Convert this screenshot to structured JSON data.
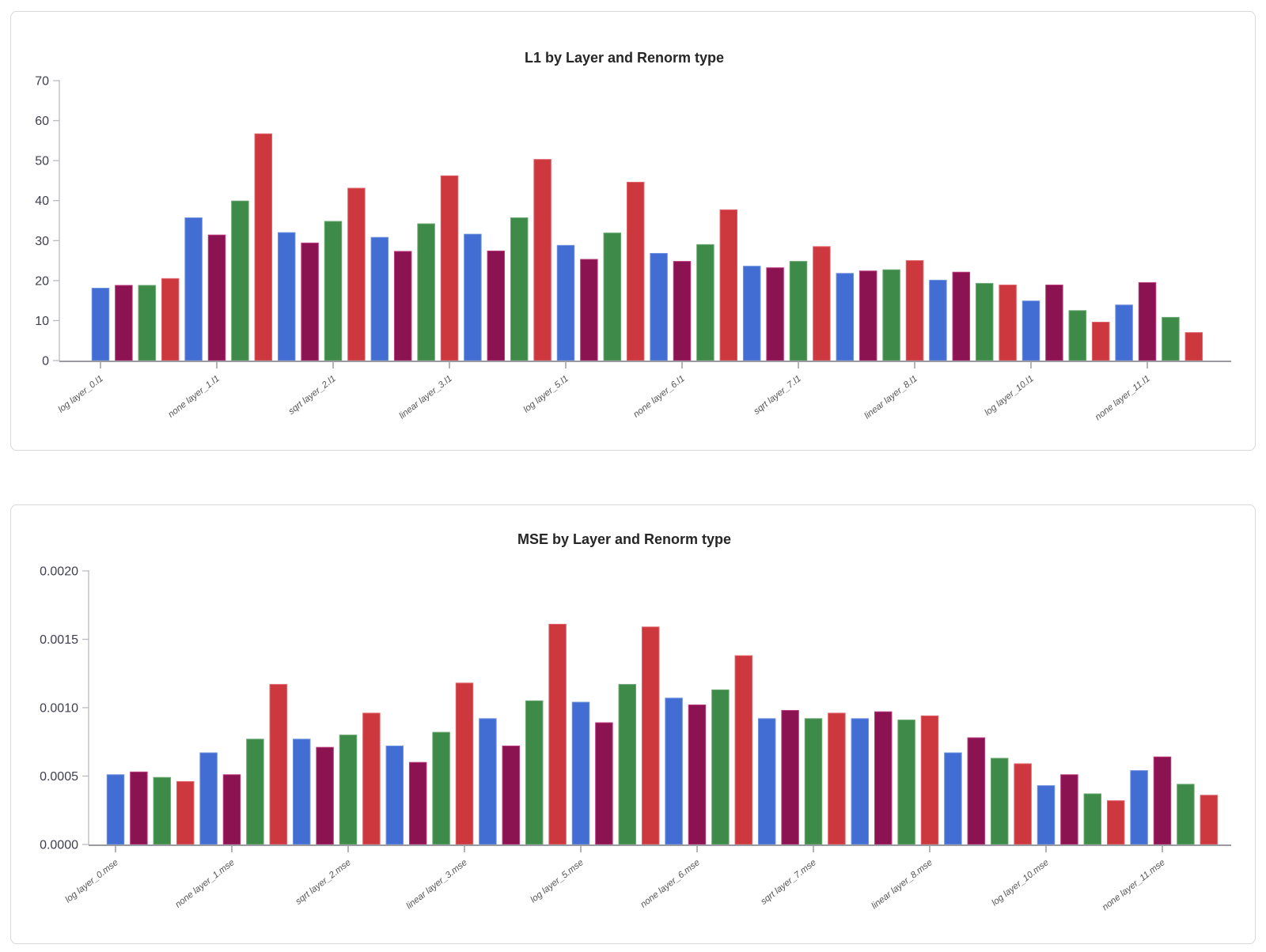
{
  "chart_data": [
    {
      "type": "bar",
      "title": "L1 by Layer and Renorm type",
      "xlabel": "",
      "ylabel": "",
      "ylim": [
        0,
        70
      ],
      "ytick_labels": [
        "0",
        "10",
        "20",
        "30",
        "40",
        "50",
        "60",
        "70"
      ],
      "grid": false,
      "legend": false,
      "groups": 12,
      "series": [
        {
          "name": "log",
          "color": "#426ed4",
          "edge_color": "#6e92e0",
          "values": [
            18.1,
            35.7,
            32.0,
            30.8,
            31.6,
            28.8,
            26.8,
            23.6,
            21.8,
            20.1,
            14.9,
            13.9
          ]
        },
        {
          "name": "none",
          "color": "#8c1351",
          "edge_color": "#bc3c7f",
          "values": [
            18.8,
            31.4,
            29.4,
            27.3,
            27.4,
            25.3,
            24.8,
            23.2,
            22.4,
            22.1,
            18.9,
            19.5
          ]
        },
        {
          "name": "sqrt",
          "color": "#3e8a48",
          "edge_color": "#6aa971",
          "values": [
            18.8,
            39.9,
            34.8,
            34.2,
            35.7,
            31.9,
            29.0,
            24.8,
            22.7,
            19.3,
            12.5,
            10.8
          ]
        },
        {
          "name": "linear",
          "color": "#cc383e",
          "edge_color": "#e0666b",
          "values": [
            20.5,
            56.7,
            43.1,
            46.2,
            50.3,
            44.6,
            37.7,
            28.5,
            25.0,
            18.9,
            9.6,
            7.0
          ]
        }
      ],
      "xticks": [
        {
          "index": 0,
          "label": "log layer_0.l1"
        },
        {
          "index": 5,
          "label": "none layer_1.l1"
        },
        {
          "index": 10,
          "label": "sqrt layer_2.l1"
        },
        {
          "index": 15,
          "label": "linear layer_3.l1"
        },
        {
          "index": 20,
          "label": "log layer_5.l1"
        },
        {
          "index": 25,
          "label": "none layer_6.l1"
        },
        {
          "index": 30,
          "label": "sqrt layer_7.l1"
        },
        {
          "index": 35,
          "label": "linear layer_8.l1"
        },
        {
          "index": 40,
          "label": "log layer_10.l1"
        },
        {
          "index": 45,
          "label": "none layer_11.l1"
        }
      ]
    },
    {
      "type": "bar",
      "title": "MSE by Layer and Renorm type",
      "xlabel": "",
      "ylabel": "",
      "ylim": [
        0,
        0.002
      ],
      "ytick_labels": [
        "0.0000",
        "0.0005",
        "0.0010",
        "0.0015",
        "0.0020"
      ],
      "grid": false,
      "legend": false,
      "groups": 12,
      "series": [
        {
          "name": "log",
          "color": "#426ed4",
          "edge_color": "#6e92e0",
          "values": [
            0.00051,
            0.00067,
            0.00077,
            0.00072,
            0.00092,
            0.00104,
            0.00107,
            0.00092,
            0.00092,
            0.00067,
            0.00043,
            0.00054
          ]
        },
        {
          "name": "none",
          "color": "#8c1351",
          "edge_color": "#bc3c7f",
          "values": [
            0.00053,
            0.00051,
            0.00071,
            0.0006,
            0.00072,
            0.00089,
            0.00102,
            0.00098,
            0.00097,
            0.00078,
            0.00051,
            0.00064
          ]
        },
        {
          "name": "sqrt",
          "color": "#3e8a48",
          "edge_color": "#6aa971",
          "values": [
            0.00049,
            0.00077,
            0.0008,
            0.00082,
            0.00105,
            0.00117,
            0.00113,
            0.00092,
            0.00091,
            0.00063,
            0.00037,
            0.00044
          ]
        },
        {
          "name": "linear",
          "color": "#cc383e",
          "edge_color": "#e0666b",
          "values": [
            0.00046,
            0.00117,
            0.00096,
            0.00118,
            0.00161,
            0.00159,
            0.00138,
            0.00096,
            0.00094,
            0.00059,
            0.00032,
            0.00036
          ]
        }
      ],
      "xticks": [
        {
          "index": 0,
          "label": "log layer_0.mse"
        },
        {
          "index": 5,
          "label": "none layer_1.mse"
        },
        {
          "index": 10,
          "label": "sqrt layer_2.mse"
        },
        {
          "index": 15,
          "label": "linear layer_3.mse"
        },
        {
          "index": 20,
          "label": "log layer_5.mse"
        },
        {
          "index": 25,
          "label": "none layer_6.mse"
        },
        {
          "index": 30,
          "label": "sqrt layer_7.mse"
        },
        {
          "index": 35,
          "label": "linear layer_8.mse"
        },
        {
          "index": 40,
          "label": "log layer_10.mse"
        },
        {
          "index": 45,
          "label": "none layer_11.mse"
        }
      ]
    }
  ]
}
